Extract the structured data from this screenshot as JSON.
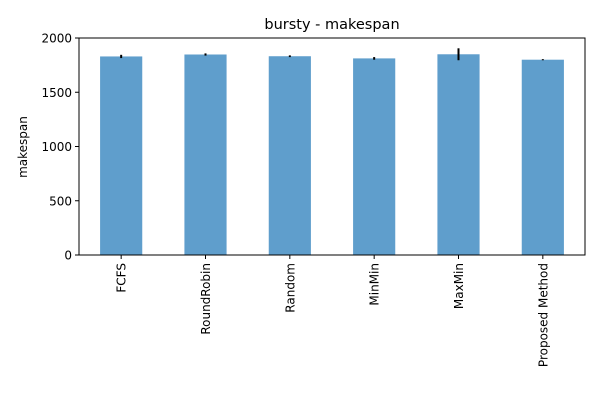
{
  "chart_data": {
    "type": "bar",
    "title": "bursty - makespan",
    "xlabel": "",
    "ylabel": "makespan",
    "ylim": [
      0,
      2000
    ],
    "yticks": [
      0,
      500,
      1000,
      1500,
      2000
    ],
    "categories": [
      "FCFS",
      "RoundRobin",
      "Random",
      "MinMin",
      "MaxMin",
      "Proposed Method"
    ],
    "values": [
      1830,
      1848,
      1832,
      1812,
      1850,
      1800
    ],
    "errors": [
      15,
      10,
      8,
      12,
      55,
      5
    ],
    "bar_color": "#5f9ecc",
    "error_color": "#000000",
    "grid": false,
    "legend": "none"
  }
}
